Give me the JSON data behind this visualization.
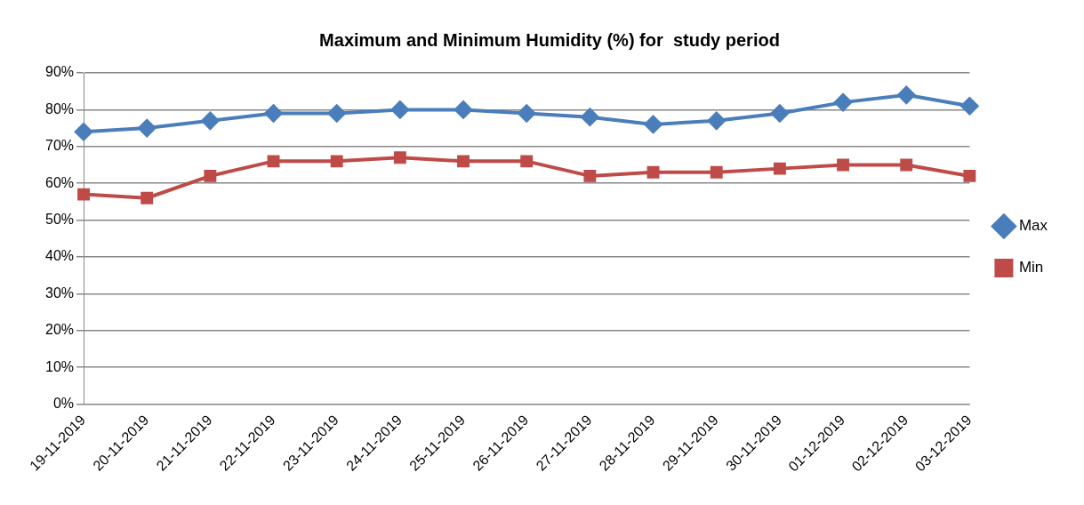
{
  "chart_data": {
    "type": "line",
    "title": "Maximum and Minimum Humidity (%) for  study period",
    "categories": [
      "19-11-2019",
      "20-11-2019",
      "21-11-2019",
      "22-11-2019",
      "23-11-2019",
      "24-11-2019",
      "25-11-2019",
      "26-11-2019",
      "27-11-2019",
      "28-11-2019",
      "29-11-2019",
      "30-11-2019",
      "01-12-2019",
      "02-12-2019",
      "03-12-2019"
    ],
    "series": [
      {
        "name": "Max",
        "color": "#4a7ebb",
        "marker": "diamond",
        "values": [
          74,
          75,
          77,
          79,
          79,
          80,
          80,
          79,
          78,
          76,
          77,
          79,
          82,
          84,
          81
        ]
      },
      {
        "name": "Min",
        "color": "#be4b48",
        "marker": "square",
        "values": [
          57,
          56,
          62,
          66,
          66,
          67,
          66,
          66,
          62,
          63,
          63,
          64,
          65,
          65,
          62
        ]
      }
    ],
    "ylim": [
      0,
      90
    ],
    "yticks": [
      {
        "value": 0,
        "label": "0%"
      },
      {
        "value": 10,
        "label": "10%"
      },
      {
        "value": 20,
        "label": "20%"
      },
      {
        "value": 30,
        "label": "30%"
      },
      {
        "value": 40,
        "label": "40%"
      },
      {
        "value": 50,
        "label": "50%"
      },
      {
        "value": 60,
        "label": "60%"
      },
      {
        "value": 70,
        "label": "70%"
      },
      {
        "value": 80,
        "label": "80%"
      },
      {
        "value": 90,
        "label": "90%"
      }
    ],
    "grid": "y",
    "legend": "right"
  }
}
